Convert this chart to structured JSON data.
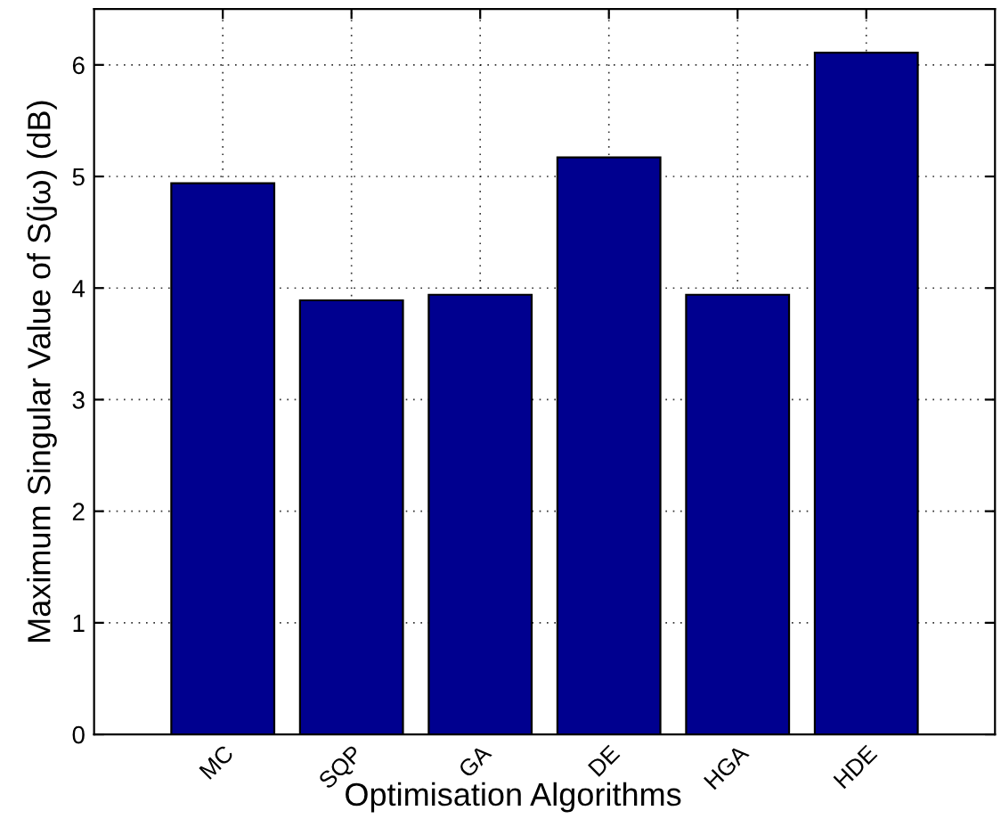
{
  "chart_data": {
    "type": "bar",
    "categories": [
      "MC",
      "SQP",
      "GA",
      "DE",
      "HGA",
      "HDE"
    ],
    "values": [
      4.94,
      3.89,
      3.94,
      5.17,
      3.94,
      6.11
    ],
    "color": "#00008f",
    "xlabel": "Optimisation Algorithms",
    "ylabel": "Maximum Singular Value of S(jω) (dB)",
    "ylim": [
      0,
      6.5
    ],
    "yticks": [
      0,
      1,
      2,
      3,
      4,
      5,
      6
    ],
    "grid": true
  }
}
